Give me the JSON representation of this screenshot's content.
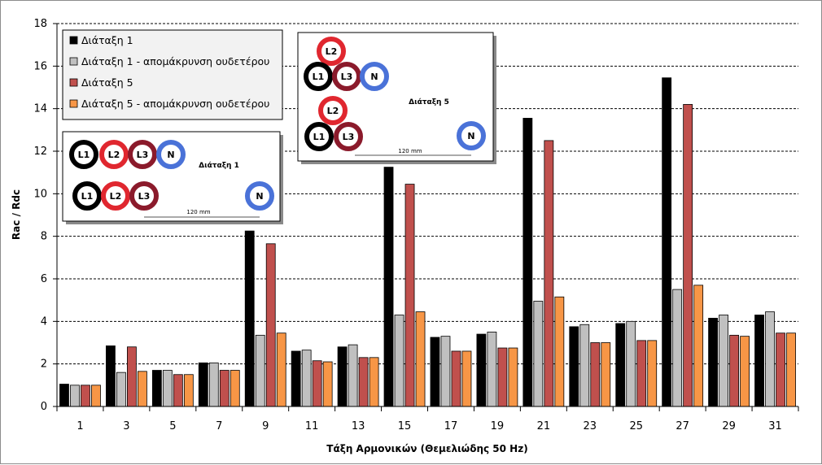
{
  "chart_data": {
    "type": "bar",
    "title": "",
    "xlabel": "Τάξη Αρμονικών (Θεμελιώδης 50 Hz)",
    "ylabel": "Rac / Rdc",
    "ylim": [
      0,
      18
    ],
    "yticks": [
      0,
      2,
      4,
      6,
      8,
      10,
      12,
      14,
      16,
      18
    ],
    "grid": "horizontal dashed",
    "legend_position": "top-left",
    "categories": [
      "1",
      "3",
      "5",
      "7",
      "9",
      "11",
      "13",
      "15",
      "17",
      "19",
      "21",
      "23",
      "25",
      "27",
      "29",
      "31"
    ],
    "series": [
      {
        "name": "Διάταξη 1",
        "color": "#000000",
        "values": [
          1.05,
          2.85,
          1.7,
          2.05,
          8.25,
          2.6,
          2.8,
          11.25,
          3.25,
          3.4,
          13.55,
          3.75,
          3.9,
          15.45,
          4.15,
          4.3
        ]
      },
      {
        "name": "Διάταξη 1 - απομάκρυνση ουδετέρου",
        "color": "#c0c0c0",
        "values": [
          1.0,
          1.6,
          1.7,
          2.05,
          3.35,
          2.65,
          2.9,
          4.3,
          3.3,
          3.5,
          4.95,
          3.85,
          4.0,
          5.5,
          4.3,
          4.45
        ]
      },
      {
        "name": "Διάταξη 5",
        "color": "#c0504d",
        "values": [
          1.0,
          2.8,
          1.5,
          1.7,
          7.65,
          2.15,
          2.3,
          10.45,
          2.6,
          2.75,
          12.5,
          3.0,
          3.1,
          14.2,
          3.35,
          3.45
        ]
      },
      {
        "name": "Διάταξη 5 - απομάκρυνση ουδετέρου",
        "color": "#f79646",
        "values": [
          1.0,
          1.65,
          1.5,
          1.7,
          3.45,
          2.1,
          2.3,
          4.45,
          2.6,
          2.75,
          5.15,
          3.0,
          3.1,
          5.7,
          3.3,
          3.45
        ]
      }
    ]
  },
  "inset_diagrams": [
    {
      "caption": "Διάταξη 1",
      "scale_label": "120 mm",
      "conductors": [
        {
          "label": "L1",
          "color": "#000000"
        },
        {
          "label": "L2",
          "color": "#e0272f"
        },
        {
          "label": "L3",
          "color": "#8b1a2b"
        },
        {
          "label": "N",
          "color": "#4a72d8"
        },
        {
          "label": "L1",
          "color": "#000000"
        },
        {
          "label": "L2",
          "color": "#e0272f"
        },
        {
          "label": "L3",
          "color": "#8b1a2b"
        },
        {
          "label": "N",
          "color": "#4a72d8"
        }
      ]
    },
    {
      "caption": "Διάταξη 5",
      "scale_label": "120 mm",
      "conductors": [
        {
          "label": "L2",
          "color": "#e0272f"
        },
        {
          "label": "L1",
          "color": "#000000"
        },
        {
          "label": "L3",
          "color": "#8b1a2b"
        },
        {
          "label": "N",
          "color": "#4a72d8"
        },
        {
          "label": "L2",
          "color": "#e0272f"
        },
        {
          "label": "L1",
          "color": "#000000"
        },
        {
          "label": "L3",
          "color": "#8b1a2b"
        },
        {
          "label": "N",
          "color": "#4a72d8"
        }
      ]
    }
  ]
}
